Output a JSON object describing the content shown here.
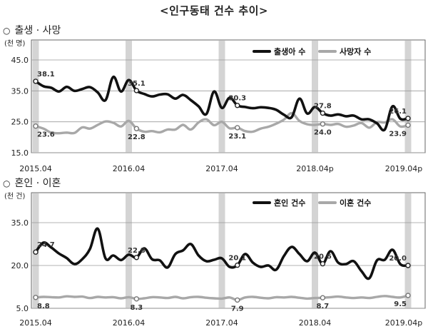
{
  "page": {
    "title": "<인구동태 건수 추이>"
  },
  "sections": [
    {
      "bullet": "○",
      "title": "출생 · 사망"
    },
    {
      "bullet": "○",
      "title": "혼인 · 이혼"
    }
  ],
  "chart_data": [
    {
      "type": "line",
      "ylabel": "(천 명)",
      "ylim": [
        15,
        45
      ],
      "yticks": [
        "45.0",
        "35.0",
        "25.0",
        "15.0"
      ],
      "yticks_values": [
        45,
        35,
        25,
        15
      ],
      "xtick_labels": [
        "2015.04",
        "2016.04",
        "2017.04",
        "2018.04p",
        "2019.04p"
      ],
      "n_points": 49,
      "grid": true,
      "legend": "top-right",
      "series": [
        {
          "name": "출생아 수",
          "color": "#111111",
          "values": [
            38.1,
            36.5,
            36.0,
            34.8,
            36.3,
            35.0,
            35.6,
            36.2,
            34.5,
            32.0,
            39.5,
            34.8,
            38.5,
            35.1,
            34.0,
            33.2,
            33.8,
            33.9,
            32.5,
            33.7,
            32.0,
            30.0,
            27.5,
            34.8,
            29.5,
            32.8,
            30.3,
            29.8,
            29.4,
            29.7,
            29.5,
            28.9,
            27.3,
            26.5,
            32.5,
            27.7,
            29.8,
            27.8,
            27.0,
            27.4,
            26.8,
            27.0,
            25.8,
            25.8,
            24.5,
            22.5,
            30.0,
            26.0,
            26.1
          ]
        },
        {
          "name": "사망자 수",
          "color": "#a8a8a8",
          "values": [
            23.6,
            22.8,
            21.5,
            21.3,
            21.5,
            21.4,
            23.2,
            22.8,
            24.0,
            25.1,
            24.7,
            23.5,
            25.3,
            22.8,
            21.8,
            22.0,
            21.6,
            22.5,
            22.5,
            24.0,
            22.5,
            24.8,
            25.8,
            23.9,
            25.0,
            22.9,
            23.1,
            22.0,
            21.8,
            22.8,
            23.4,
            24.4,
            25.7,
            27.8,
            25.3,
            24.2,
            24.0,
            24.3,
            24.0,
            24.3,
            23.4,
            23.8,
            24.6,
            23.1,
            24.9,
            24.8,
            25.8,
            23.5,
            23.9
          ]
        }
      ],
      "annotations": [
        {
          "series": 0,
          "index": 0,
          "label": "38.1"
        },
        {
          "series": 0,
          "index": 13,
          "label": "35.1"
        },
        {
          "series": 0,
          "index": 26,
          "label": "30.3"
        },
        {
          "series": 0,
          "index": 37,
          "label": "27.8"
        },
        {
          "series": 0,
          "index": 48,
          "label": "26.1"
        },
        {
          "series": 1,
          "index": 0,
          "label": "23.6"
        },
        {
          "series": 1,
          "index": 13,
          "label": "22.8"
        },
        {
          "series": 1,
          "index": 26,
          "label": "23.1"
        },
        {
          "series": 1,
          "index": 37,
          "label": "24.0"
        },
        {
          "series": 1,
          "index": 48,
          "label": "23.9"
        }
      ]
    },
    {
      "type": "line",
      "ylabel": "(천 건)",
      "ylim": [
        5,
        35
      ],
      "yticks": [
        "35.0",
        "20.0",
        "5.0"
      ],
      "yticks_values": [
        35,
        20,
        5
      ],
      "xtick_labels": [
        "2015.04",
        "2016.04",
        "2017.04",
        "2018.04",
        "2019.04p"
      ],
      "n_points": 49,
      "grid": true,
      "legend": "top-right",
      "series": [
        {
          "name": "혼인 건수",
          "color": "#111111",
          "values": [
            24.7,
            28.0,
            26.3,
            24.2,
            22.6,
            20.5,
            22.2,
            25.8,
            32.9,
            22.5,
            23.5,
            21.9,
            23.8,
            22.8,
            26.0,
            22.2,
            21.8,
            19.3,
            24.0,
            25.3,
            27.5,
            23.5,
            21.5,
            22.0,
            22.5,
            19.5,
            20.1,
            24.0,
            21.0,
            19.5,
            20.0,
            18.5,
            23.3,
            26.5,
            24.0,
            21.5,
            24.5,
            20.6,
            25.0,
            21.0,
            20.5,
            21.5,
            18.0,
            15.5,
            21.8,
            22.0,
            25.5,
            20.5,
            20.0
          ]
        },
        {
          "name": "이혼 건수",
          "color": "#a8a8a8",
          "values": [
            8.8,
            9.0,
            8.9,
            8.8,
            9.2,
            9.0,
            9.1,
            8.6,
            9.0,
            8.8,
            8.9,
            8.5,
            8.9,
            8.3,
            8.5,
            8.9,
            8.8,
            8.6,
            9.0,
            8.5,
            8.9,
            9.0,
            8.7,
            8.5,
            8.4,
            8.8,
            7.9,
            8.8,
            9.0,
            8.7,
            8.5,
            8.9,
            8.8,
            9.0,
            8.7,
            8.4,
            8.6,
            8.7,
            8.9,
            9.1,
            8.8,
            8.6,
            8.8,
            8.6,
            9.0,
            9.3,
            9.0,
            8.8,
            9.5
          ]
        }
      ],
      "annotations": [
        {
          "series": 0,
          "index": 0,
          "label": "24.7"
        },
        {
          "series": 0,
          "index": 13,
          "label": "22.8"
        },
        {
          "series": 0,
          "index": 26,
          "label": "20.1"
        },
        {
          "series": 0,
          "index": 37,
          "label": "20.6"
        },
        {
          "series": 0,
          "index": 48,
          "label": "20.0"
        },
        {
          "series": 1,
          "index": 0,
          "label": "8.8"
        },
        {
          "series": 1,
          "index": 13,
          "label": "8.3"
        },
        {
          "series": 1,
          "index": 26,
          "label": "7.9"
        },
        {
          "series": 1,
          "index": 37,
          "label": "8.7"
        },
        {
          "series": 1,
          "index": 48,
          "label": "9.5"
        }
      ]
    }
  ]
}
